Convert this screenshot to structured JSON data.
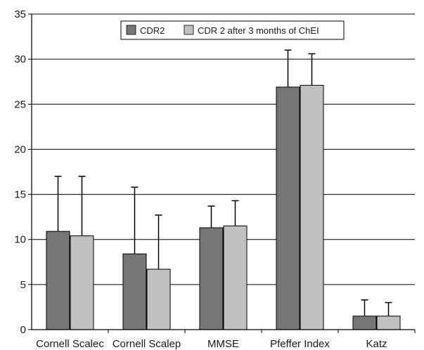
{
  "chart_data": {
    "type": "bar",
    "categories": [
      "Cornell Scalec",
      "Cornell Scalep",
      "MMSE",
      "Pfeffer Index",
      "Katz"
    ],
    "series": [
      {
        "name": "CDR2",
        "color": "#767676",
        "values": [
          10.9,
          8.4,
          11.3,
          26.9,
          1.5
        ],
        "error_upper": [
          17.0,
          15.8,
          13.7,
          31.0,
          3.3
        ]
      },
      {
        "name": "CDR 2 after 3 months of ChEI",
        "color": "#c0c0c0",
        "values": [
          10.4,
          6.7,
          11.5,
          27.1,
          1.5
        ],
        "error_upper": [
          17.0,
          12.7,
          14.3,
          30.6,
          3.0
        ]
      }
    ],
    "ylim": [
      0,
      35
    ],
    "yticks": [
      0,
      5,
      10,
      15,
      20,
      25,
      30,
      35
    ],
    "grid": true,
    "legend_position": "top-center",
    "title": "",
    "xlabel": "",
    "ylabel": ""
  }
}
